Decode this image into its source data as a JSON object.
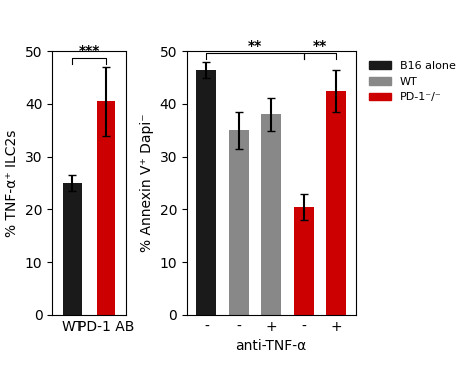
{
  "chart_data": [
    {
      "type": "bar",
      "categories": [
        "WT",
        "PD-1 AB"
      ],
      "values": [
        25.0,
        40.5
      ],
      "errors": [
        1.5,
        6.5
      ],
      "colors": [
        "#1a1a1a",
        "#cc0000"
      ],
      "y_label": "% TNF-α⁺ ILC2s",
      "ylim": [
        0,
        50
      ],
      "yticks": [
        0,
        10,
        20,
        30,
        40,
        50
      ],
      "annotations": [
        {
          "text": "***",
          "bars": [
            0,
            1
          ]
        }
      ]
    },
    {
      "type": "bar",
      "categories": [
        "-",
        "-",
        "+",
        "-",
        "+"
      ],
      "x_label": "anti-TNF-α",
      "y_label": "% Annexin V⁺ Dapi⁻",
      "series": [
        {
          "name": "B16 alone",
          "color": "#1a1a1a",
          "values": [
            46.5,
            null,
            null,
            null,
            null
          ],
          "errors": [
            1.5,
            null,
            null,
            null,
            null
          ]
        },
        {
          "name": "WT",
          "color": "#888888",
          "values": [
            null,
            35.0,
            38.0,
            null,
            null
          ],
          "errors": [
            null,
            3.5,
            3.2,
            null,
            null
          ]
        },
        {
          "name": "PD-1⁻/⁻",
          "color": "#cc0000",
          "values": [
            null,
            null,
            null,
            20.5,
            42.5
          ],
          "errors": [
            null,
            null,
            null,
            2.5,
            4.0
          ]
        }
      ],
      "ylim": [
        0,
        50
      ],
      "yticks": [
        0,
        10,
        20,
        30,
        40,
        50
      ],
      "legend": "upper left",
      "annotations": [
        {
          "text": "**",
          "bars": [
            0,
            3
          ]
        },
        {
          "text": "**",
          "bars": [
            3,
            4
          ]
        }
      ]
    }
  ]
}
